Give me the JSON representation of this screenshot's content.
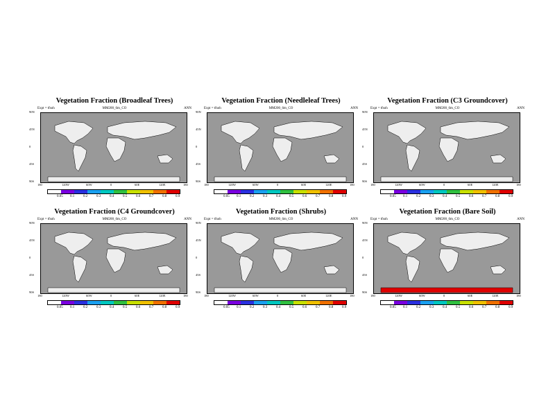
{
  "common": {
    "expt": "Expt = tfsoh",
    "model": "MM200_6m_CO",
    "period": "ANN",
    "lat_ticks": [
      "90N",
      "45N",
      "0",
      "45S",
      "90S"
    ],
    "lon_ticks": [
      "180",
      "120W",
      "60W",
      "0",
      "60E",
      "120E",
      "180"
    ],
    "colorbar_labels": [
      "0.05",
      "0.1",
      "0.2",
      "0.3",
      "0.4",
      "0.5",
      "0.6",
      "0.7",
      "0.8",
      "0.9"
    ],
    "colors": [
      "#ffffff",
      "#7a00e0",
      "#2a30e0",
      "#1aa0f0",
      "#00c8c0",
      "#30c040",
      "#c8e000",
      "#f0c000",
      "#f07000",
      "#e00000"
    ],
    "ocean": "#999999",
    "land_low": "#eeeeee"
  },
  "panels": [
    {
      "title": "Vegetation Fraction (Broadleaf Trees)",
      "model": "MM200_6m_CO"
    },
    {
      "title": "Vegetation Fraction (Needleleaf Trees)",
      "model": "MM200_6m_CO"
    },
    {
      "title": "Vegetation Fraction (C3 Groundcover)",
      "model": "MM200_6m_CO"
    },
    {
      "title": "Vegetation Fraction (C4 Groundcover)",
      "model": "MM200_6m_CO"
    },
    {
      "title": "Vegetation Fraction (Shrubs)",
      "model": "MM200_6m_CO"
    },
    {
      "title": "Vegetation Fraction (Bare Soil)",
      "model": "MM200_6m_CO"
    }
  ]
}
